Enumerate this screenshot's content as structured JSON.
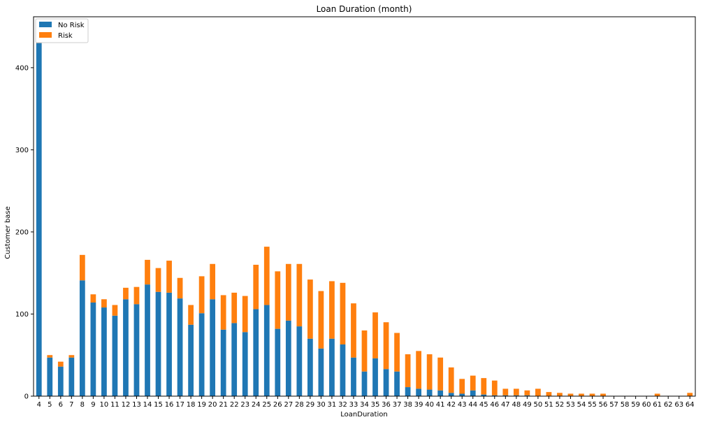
{
  "chart_data": {
    "type": "bar",
    "stacked": true,
    "title": "Loan Duration (month)",
    "xlabel": "LoanDuration",
    "ylabel": "Customer base",
    "ylim": [
      0,
      462
    ],
    "yticks": [
      0,
      100,
      200,
      300,
      400
    ],
    "legend_position": "top-left",
    "categories": [
      "4",
      "5",
      "6",
      "7",
      "8",
      "9",
      "10",
      "11",
      "12",
      "13",
      "14",
      "15",
      "16",
      "17",
      "18",
      "19",
      "20",
      "21",
      "22",
      "23",
      "24",
      "25",
      "26",
      "27",
      "28",
      "29",
      "30",
      "31",
      "32",
      "33",
      "34",
      "35",
      "36",
      "37",
      "38",
      "39",
      "40",
      "41",
      "42",
      "43",
      "44",
      "45",
      "46",
      "47",
      "48",
      "49",
      "50",
      "51",
      "52",
      "53",
      "54",
      "55",
      "56",
      "57",
      "58",
      "59",
      "60",
      "61",
      "62",
      "63",
      "64"
    ],
    "series": [
      {
        "name": "No Risk",
        "color": "#1f77b4",
        "values": [
          430,
          47,
          36,
          47,
          141,
          114,
          108,
          98,
          118,
          112,
          136,
          127,
          126,
          119,
          87,
          101,
          118,
          81,
          89,
          78,
          106,
          111,
          82,
          92,
          85,
          70,
          58,
          70,
          63,
          47,
          30,
          46,
          33,
          30,
          11,
          9,
          8,
          7,
          4,
          3,
          7,
          2,
          1,
          1,
          1,
          1,
          0,
          0,
          0,
          0,
          0,
          0,
          0,
          0,
          0,
          0,
          0,
          0,
          0,
          0,
          0
        ]
      },
      {
        "name": "Risk",
        "color": "#ff7f0e",
        "values": [
          12,
          3,
          6,
          3,
          31,
          10,
          10,
          13,
          14,
          21,
          30,
          29,
          39,
          25,
          24,
          45,
          43,
          42,
          37,
          44,
          54,
          71,
          70,
          69,
          76,
          72,
          70,
          70,
          75,
          66,
          50,
          56,
          57,
          47,
          40,
          46,
          43,
          40,
          31,
          18,
          18,
          20,
          18,
          8,
          8,
          6,
          9,
          5,
          4,
          3,
          3,
          3,
          3,
          0,
          0,
          0,
          0,
          3,
          0,
          0,
          4
        ]
      }
    ]
  }
}
